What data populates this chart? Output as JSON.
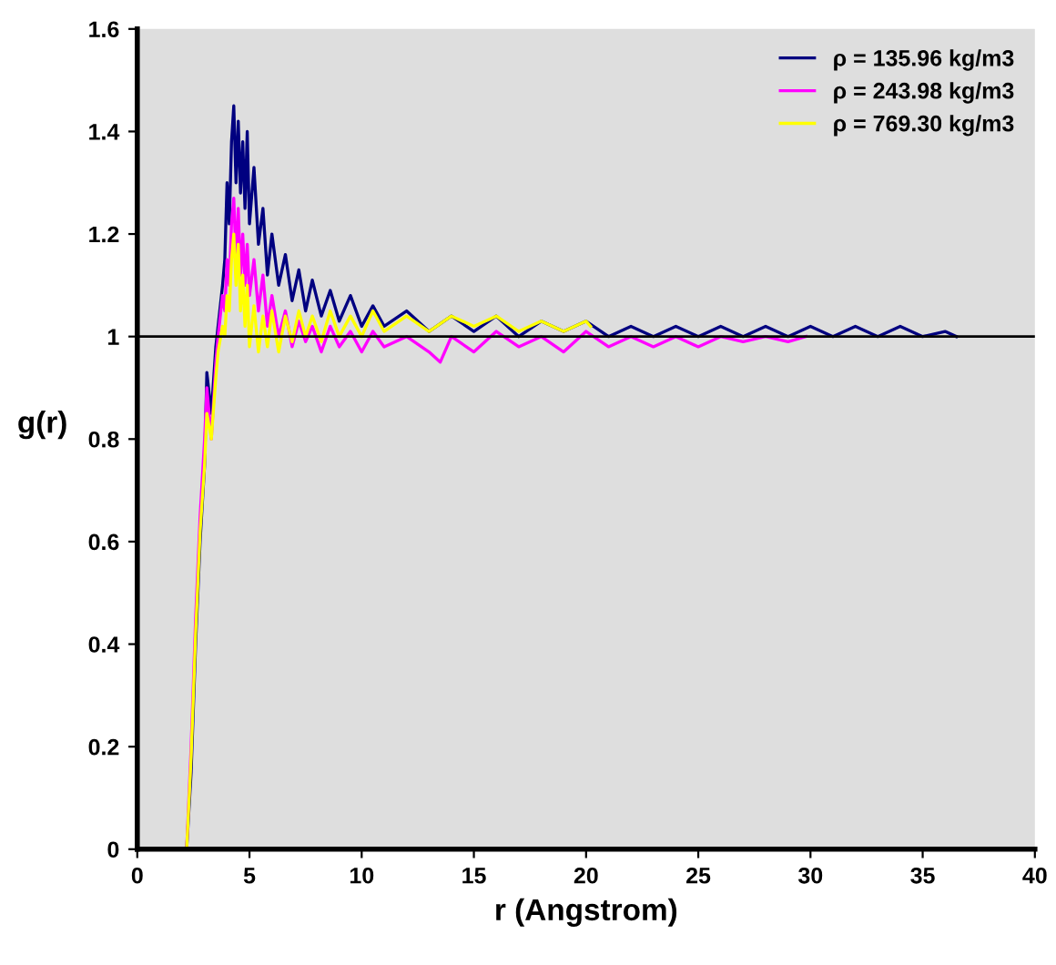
{
  "chart_data": {
    "type": "line",
    "xlabel": "r (Angstrom)",
    "ylabel": "g(r)",
    "xlim": [
      0,
      40
    ],
    "xticks": [
      0,
      5,
      10,
      15,
      20,
      25,
      30,
      35,
      40
    ],
    "ylim": [
      0,
      1.6
    ],
    "yticks": [
      0,
      0.2,
      0.4,
      0.6,
      0.8,
      1,
      1.2,
      1.4,
      1.6
    ],
    "grid": false,
    "legend": "top right",
    "marker": "none",
    "line_style": "solid",
    "ref_lines": [
      {
        "axis": "y",
        "value": 1,
        "color": "#000000"
      }
    ],
    "series": [
      {
        "name": "ρ = 135.96 kg/m3",
        "color": "#000080",
        "x": [
          0,
          2.2,
          2.4,
          2.6,
          2.8,
          3.0,
          3.1,
          3.3,
          3.5,
          3.6,
          3.8,
          3.9,
          4.0,
          4.1,
          4.2,
          4.3,
          4.4,
          4.5,
          4.6,
          4.7,
          4.8,
          4.9,
          5.0,
          5.2,
          5.4,
          5.6,
          5.8,
          6.0,
          6.3,
          6.6,
          6.9,
          7.2,
          7.5,
          7.8,
          8.2,
          8.6,
          9.0,
          9.5,
          10,
          10.5,
          11,
          12,
          13,
          14,
          15,
          16,
          17,
          18,
          19,
          20,
          21,
          22,
          23,
          24,
          25,
          26,
          27,
          28,
          29,
          30,
          31,
          32,
          33,
          34,
          35,
          36,
          36.5
        ],
        "values": [
          0,
          0,
          0.15,
          0.4,
          0.6,
          0.75,
          0.93,
          0.85,
          0.98,
          1.02,
          1.1,
          1.15,
          1.3,
          1.22,
          1.38,
          1.45,
          1.3,
          1.42,
          1.28,
          1.38,
          1.25,
          1.4,
          1.22,
          1.33,
          1.18,
          1.25,
          1.12,
          1.2,
          1.1,
          1.16,
          1.07,
          1.13,
          1.05,
          1.11,
          1.04,
          1.09,
          1.03,
          1.08,
          1.02,
          1.06,
          1.02,
          1.05,
          1.01,
          1.04,
          1.01,
          1.04,
          1.0,
          1.03,
          1.01,
          1.03,
          1.0,
          1.02,
          1.0,
          1.02,
          1.0,
          1.02,
          1.0,
          1.02,
          1.0,
          1.02,
          1.0,
          1.02,
          1.0,
          1.02,
          1.0,
          1.01,
          1.0
        ]
      },
      {
        "name": "ρ = 243.98 kg/m3",
        "color": "#ff00ff",
        "x": [
          0,
          2.2,
          2.4,
          2.6,
          2.8,
          3.0,
          3.1,
          3.3,
          3.5,
          3.6,
          3.8,
          3.9,
          4.0,
          4.1,
          4.2,
          4.3,
          4.4,
          4.5,
          4.6,
          4.7,
          4.8,
          4.9,
          5.0,
          5.2,
          5.4,
          5.6,
          5.8,
          6.0,
          6.3,
          6.6,
          6.9,
          7.2,
          7.5,
          7.8,
          8.2,
          8.6,
          9.0,
          9.5,
          10,
          10.5,
          11,
          12,
          13,
          13.5,
          14,
          15,
          16,
          17,
          18,
          19,
          20,
          21,
          22,
          23,
          24,
          25,
          26,
          27,
          28,
          29,
          29.8
        ],
        "values": [
          0,
          0,
          0.2,
          0.45,
          0.65,
          0.8,
          0.9,
          0.8,
          0.95,
          1.0,
          1.08,
          1.05,
          1.15,
          1.1,
          1.22,
          1.27,
          1.15,
          1.25,
          1.12,
          1.2,
          1.1,
          1.18,
          1.08,
          1.15,
          1.05,
          1.12,
          1.02,
          1.08,
          1.0,
          1.05,
          0.98,
          1.03,
          0.99,
          1.02,
          0.97,
          1.02,
          0.98,
          1.01,
          0.97,
          1.01,
          0.98,
          1.0,
          0.97,
          0.95,
          1.0,
          0.97,
          1.01,
          0.98,
          1.0,
          0.97,
          1.01,
          0.98,
          1.0,
          0.98,
          1.0,
          0.98,
          1.0,
          0.99,
          1.0,
          0.99,
          1.0
        ]
      },
      {
        "name": "ρ = 769.30 kg/m3",
        "color": "#ffff00",
        "x": [
          0,
          2.2,
          2.4,
          2.6,
          2.8,
          3.0,
          3.1,
          3.3,
          3.5,
          3.6,
          3.8,
          3.9,
          4.0,
          4.1,
          4.2,
          4.3,
          4.4,
          4.5,
          4.6,
          4.7,
          4.8,
          4.9,
          5.0,
          5.2,
          5.4,
          5.6,
          5.8,
          6.0,
          6.3,
          6.6,
          6.9,
          7.2,
          7.5,
          7.8,
          8.2,
          8.6,
          9.0,
          9.5,
          10,
          10.5,
          11,
          12,
          13,
          14,
          15,
          16,
          17,
          18,
          19,
          20,
          20.2
        ],
        "values": [
          0,
          0,
          0.18,
          0.42,
          0.62,
          0.75,
          0.85,
          0.8,
          0.92,
          0.97,
          1.02,
          1.0,
          1.08,
          1.05,
          1.15,
          1.2,
          1.1,
          1.18,
          1.05,
          1.12,
          1.02,
          1.1,
          0.98,
          1.06,
          0.97,
          1.04,
          0.98,
          1.05,
          0.97,
          1.04,
          0.99,
          1.05,
          1.0,
          1.04,
          0.99,
          1.05,
          1.0,
          1.04,
          1.0,
          1.05,
          1.01,
          1.04,
          1.01,
          1.04,
          1.02,
          1.04,
          1.01,
          1.03,
          1.01,
          1.03,
          1.02
        ]
      }
    ]
  }
}
